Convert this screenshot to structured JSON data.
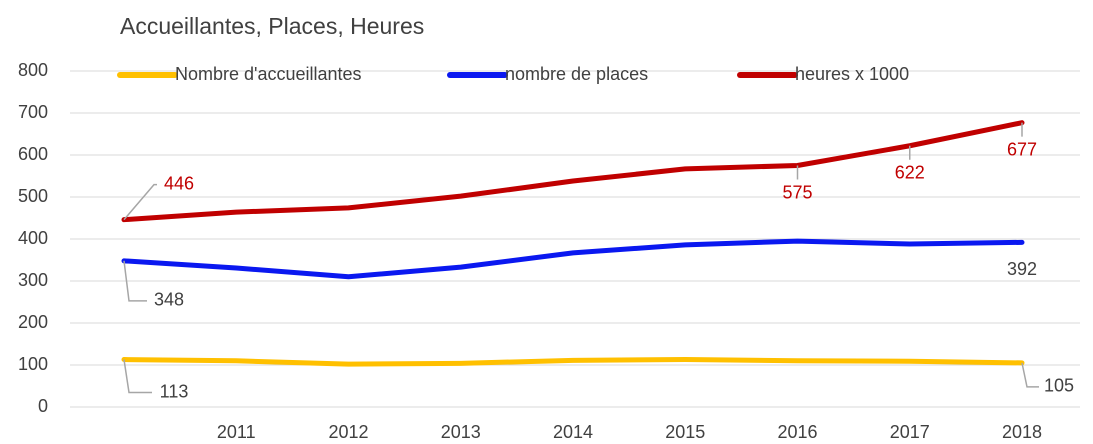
{
  "chart_data": {
    "type": "line",
    "title": "Accueillantes, Places, Heures",
    "categories": [
      null,
      "2011",
      "2012",
      "2013",
      "2014",
      "2015",
      "2016",
      "2017",
      "2018"
    ],
    "series": [
      {
        "name": "Nombre d'accueillantes",
        "color": "#ffc000",
        "values": [
          113,
          110,
          102,
          104,
          111,
          113,
          110,
          109,
          105
        ],
        "value_labels": [
          "113",
          null,
          null,
          null,
          null,
          null,
          null,
          null,
          "105"
        ]
      },
      {
        "name": "nombre de places",
        "color": "#0a18f0",
        "values": [
          348,
          331,
          310,
          333,
          367,
          386,
          395,
          388,
          392
        ],
        "value_labels": [
          "348",
          null,
          null,
          null,
          null,
          null,
          null,
          null,
          "392"
        ]
      },
      {
        "name": "heures x 1000",
        "color": "#c00000",
        "values": [
          446,
          464,
          474,
          502,
          538,
          567,
          575,
          622,
          677
        ],
        "value_labels": [
          "446",
          null,
          null,
          null,
          null,
          null,
          "575",
          "622",
          "677"
        ]
      }
    ],
    "ylim": [
      0,
      800
    ],
    "yticks": [
      0,
      100,
      200,
      300,
      400,
      500,
      600,
      700,
      800
    ],
    "grid": true
  }
}
